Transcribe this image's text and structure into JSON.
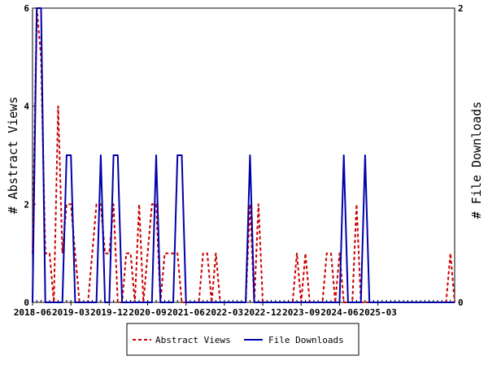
{
  "chart_data": {
    "type": "line",
    "title": "",
    "y_left_label": "# Abstract Views",
    "y_right_label": "# File Downloads",
    "x_tick_labels": [
      "2018-06",
      "2019-03",
      "2019-12",
      "2020-09",
      "2021-06",
      "2022-03",
      "2022-12",
      "2023-09",
      "2024-06",
      "2025-03"
    ],
    "y_left_ticks": [
      "0",
      "2",
      "4",
      "6"
    ],
    "y_right_ticks": [
      "0",
      "2"
    ],
    "y_left_range": [
      0,
      6
    ],
    "y_right_range": [
      0,
      2
    ],
    "grid": false,
    "legend_position": "bottom",
    "series": [
      {
        "name": "Abstract Views",
        "axis": "left",
        "color": "#cc0000",
        "style": "dashed",
        "values": [
          1,
          6,
          5,
          1,
          1,
          0,
          4,
          1,
          2,
          2,
          1,
          0,
          0,
          0,
          1,
          2,
          2,
          1,
          1,
          2,
          0,
          0,
          1,
          1,
          0,
          2,
          0,
          1,
          2,
          2,
          0,
          1,
          1,
          1,
          1,
          0,
          0,
          0,
          0,
          0,
          1,
          1,
          0,
          1,
          0,
          0,
          0,
          0,
          0,
          0,
          0,
          2,
          0,
          2,
          0,
          0,
          0,
          0,
          0,
          0,
          0,
          0,
          1,
          0,
          1,
          0,
          0,
          0,
          0,
          1,
          1,
          0,
          1,
          0,
          0,
          0,
          2,
          0,
          0,
          0,
          0,
          0,
          0,
          0,
          0,
          0,
          0,
          0,
          0,
          0,
          0,
          0,
          0,
          0,
          0,
          0,
          0,
          0,
          1,
          0
        ]
      },
      {
        "name": "File Downloads",
        "axis": "right",
        "color": "#0000aa",
        "style": "solid",
        "values": [
          0,
          2,
          2,
          0,
          0,
          0,
          0,
          0,
          1,
          1,
          0,
          0,
          0,
          0,
          0,
          0,
          1,
          0,
          0,
          1,
          1,
          0,
          0,
          0,
          0,
          0,
          0,
          0,
          0,
          1,
          0,
          0,
          0,
          0,
          1,
          1,
          0,
          0,
          0,
          0,
          0,
          0,
          0,
          0,
          0,
          0,
          0,
          0,
          0,
          0,
          0,
          1,
          0,
          0,
          0,
          0,
          0,
          0,
          0,
          0,
          0,
          0,
          0,
          0,
          0,
          0,
          0,
          0,
          0,
          0,
          0,
          0,
          0,
          1,
          0,
          0,
          0,
          0,
          1,
          0,
          0,
          0,
          0,
          0,
          0,
          0,
          0,
          0,
          0,
          0,
          0,
          0,
          0,
          0,
          0,
          0,
          0,
          0,
          0,
          0
        ]
      }
    ]
  }
}
